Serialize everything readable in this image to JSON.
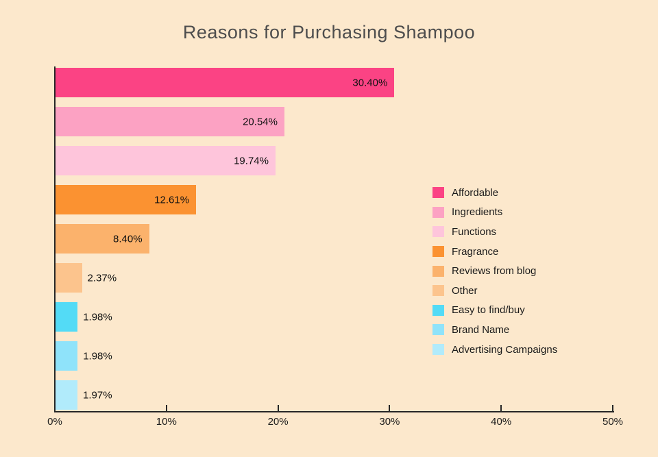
{
  "title": "Reasons for Purchasing Shampoo",
  "colors": {
    "background": "#FCE8CC",
    "axis": "#262626",
    "title_text": "#4D4D4D",
    "label_text": "#1A1A1A"
  },
  "chart_data": {
    "type": "bar",
    "orientation": "horizontal",
    "title": "Reasons for Purchasing Shampoo",
    "categories": [
      "Affordable",
      "Ingredients",
      "Functions",
      "Fragrance",
      "Reviews from blog",
      "Other",
      "Easy to find/buy",
      "Brand Name",
      "Advertising Campaigns"
    ],
    "values": [
      30.4,
      20.54,
      19.74,
      12.61,
      8.4,
      2.37,
      1.98,
      1.98,
      1.97
    ],
    "value_labels": [
      "30.40%",
      "20.54%",
      "19.74%",
      "12.61%",
      "8.40%",
      "2.37%",
      "1.98%",
      "1.98%",
      "1.97%"
    ],
    "bar_colors": [
      "#FB4384",
      "#FCA2C3",
      "#FEC5DB",
      "#FB9231",
      "#FBB26C",
      "#FCC48D",
      "#53DBF6",
      "#8FE3FA",
      "#B1EBFB"
    ],
    "x_ticks": [
      "0%",
      "10%",
      "20%",
      "30%",
      "40%",
      "50%"
    ],
    "xlim": [
      0,
      50
    ],
    "xlabel": "",
    "ylabel": "",
    "grid": false,
    "legend_position": "middle-right",
    "legend_entries": [
      "Affordable",
      "Ingredients",
      "Functions",
      "Fragrance",
      "Reviews from blog",
      "Other",
      "Easy to find/buy",
      "Brand Name",
      "Advertising Campaigns"
    ]
  }
}
